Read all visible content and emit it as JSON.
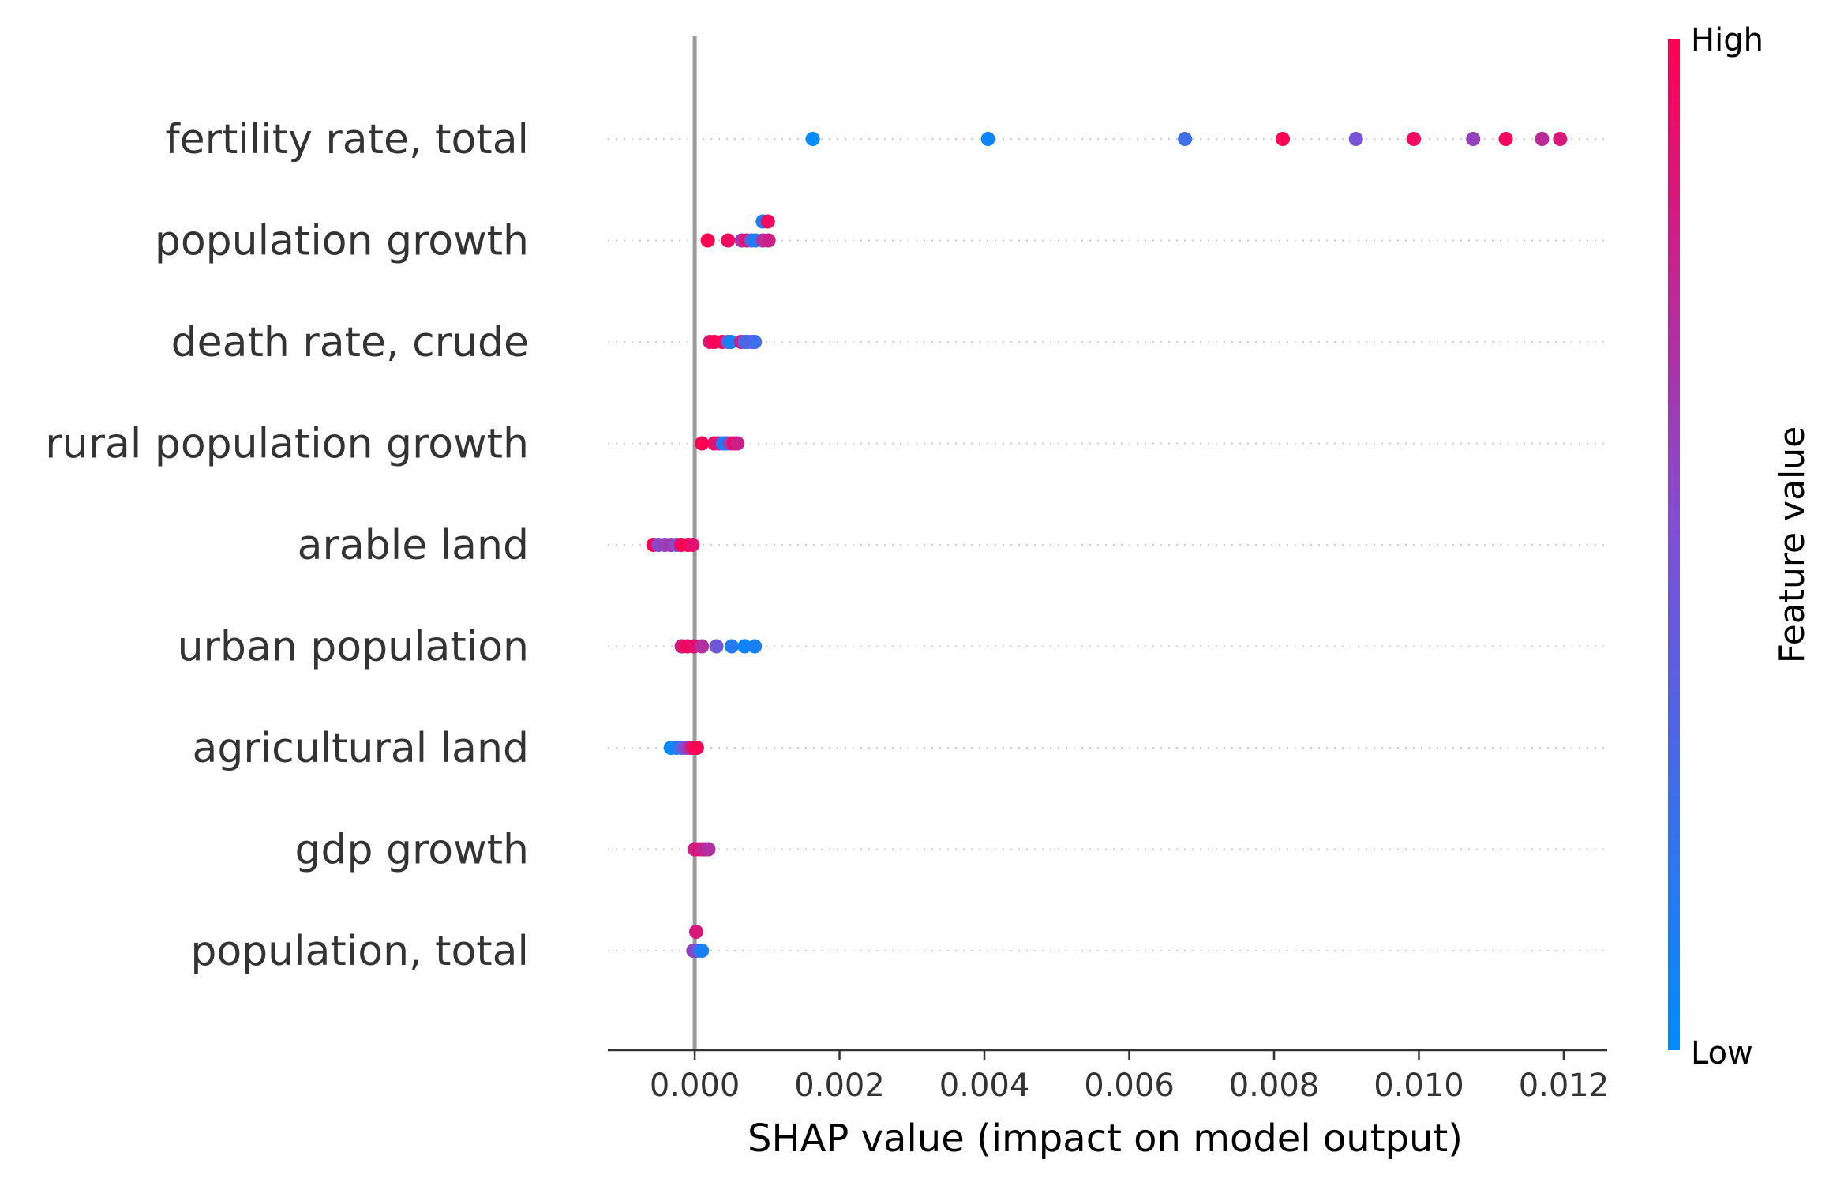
{
  "chart_data": {
    "type": "scatter",
    "subtype": "shap-beeswarm",
    "xlabel": "SHAP value (impact on model output)",
    "xlim": [
      -0.0012,
      0.0126
    ],
    "xticks": [
      0.0,
      0.002,
      0.004,
      0.006,
      0.008,
      0.01,
      0.012
    ],
    "xtick_labels": [
      "0.000",
      "0.002",
      "0.004",
      "0.006",
      "0.008",
      "0.010",
      "0.012"
    ],
    "zero_line": 0.0,
    "colorbar": {
      "title": "Feature value",
      "high_label": "High",
      "low_label": "Low",
      "low_color": "#008bfb",
      "mid_color": "#7b51d8",
      "high_color": "#ff0052"
    },
    "features": [
      {
        "name": "fertility rate, total",
        "points": [
          {
            "x": 0.00163,
            "v": 0.0,
            "dy": 0
          },
          {
            "x": 0.00405,
            "v": 0.05,
            "dy": 0
          },
          {
            "x": 0.00677,
            "v": 0.25,
            "dy": 0
          },
          {
            "x": 0.00812,
            "v": 1.0,
            "dy": 0
          },
          {
            "x": 0.00913,
            "v": 0.5,
            "dy": 0
          },
          {
            "x": 0.00993,
            "v": 0.95,
            "dy": 0
          },
          {
            "x": 0.01075,
            "v": 0.6,
            "dy": 0
          },
          {
            "x": 0.0112,
            "v": 0.95,
            "dy": 0
          },
          {
            "x": 0.0117,
            "v": 0.75,
            "dy": 0
          },
          {
            "x": 0.01195,
            "v": 0.85,
            "dy": 0
          }
        ]
      },
      {
        "name": "population growth",
        "points": [
          {
            "x": 0.00018,
            "v": 1.0,
            "dy": 0
          },
          {
            "x": 0.00046,
            "v": 0.95,
            "dy": 0
          },
          {
            "x": 0.00065,
            "v": 0.7,
            "dy": 0
          },
          {
            "x": 0.00072,
            "v": 0.9,
            "dy": 0
          },
          {
            "x": 0.00078,
            "v": 0.35,
            "dy": 0
          },
          {
            "x": 0.00084,
            "v": 0.1,
            "dy": 0
          },
          {
            "x": 0.00094,
            "v": 0.7,
            "dy": 0
          },
          {
            "x": 0.00102,
            "v": 0.8,
            "dy": 0
          },
          {
            "x": 0.00094,
            "v": 0.1,
            "dy": -1
          },
          {
            "x": 0.00101,
            "v": 0.95,
            "dy": -1
          }
        ]
      },
      {
        "name": "death rate, crude",
        "points": [
          {
            "x": 0.00021,
            "v": 0.85,
            "dy": 0
          },
          {
            "x": 0.00027,
            "v": 1.0,
            "dy": 0
          },
          {
            "x": 0.00038,
            "v": 0.95,
            "dy": 0
          },
          {
            "x": 0.00046,
            "v": 0.4,
            "dy": 0
          },
          {
            "x": 0.0005,
            "v": 0.1,
            "dy": 0
          },
          {
            "x": 0.00064,
            "v": 0.8,
            "dy": 0
          },
          {
            "x": 0.00069,
            "v": 0.5,
            "dy": 0
          },
          {
            "x": 0.00073,
            "v": 0.2,
            "dy": 0
          },
          {
            "x": 0.00079,
            "v": 0.45,
            "dy": 0
          },
          {
            "x": 0.00083,
            "v": 0.25,
            "dy": 0
          }
        ]
      },
      {
        "name": "rural population growth",
        "points": [
          {
            "x": 0.0001,
            "v": 1.0,
            "dy": 0
          },
          {
            "x": 0.00027,
            "v": 0.95,
            "dy": 0
          },
          {
            "x": 0.00033,
            "v": 0.85,
            "dy": 0
          },
          {
            "x": 0.00039,
            "v": 0.2,
            "dy": 0
          },
          {
            "x": 0.00043,
            "v": 0.05,
            "dy": 0
          },
          {
            "x": 0.00048,
            "v": 0.6,
            "dy": 0
          },
          {
            "x": 0.00054,
            "v": 0.95,
            "dy": 0
          },
          {
            "x": 0.00059,
            "v": 0.8,
            "dy": 0
          }
        ]
      },
      {
        "name": "arable land",
        "points": [
          {
            "x": -0.00057,
            "v": 1.0,
            "dy": 0
          },
          {
            "x": -0.0005,
            "v": 0.55,
            "dy": 0
          },
          {
            "x": -0.00041,
            "v": 0.6,
            "dy": 0
          },
          {
            "x": -0.00033,
            "v": 0.65,
            "dy": 0
          },
          {
            "x": -0.00025,
            "v": 0.5,
            "dy": 0
          },
          {
            "x": -0.00019,
            "v": 0.95,
            "dy": 0
          },
          {
            "x": -9e-05,
            "v": 1.0,
            "dy": 0
          },
          {
            "x": -3e-05,
            "v": 0.9,
            "dy": 0
          }
        ]
      },
      {
        "name": "urban population",
        "points": [
          {
            "x": -0.00018,
            "v": 0.85,
            "dy": 0
          },
          {
            "x": -0.0001,
            "v": 0.95,
            "dy": 0
          },
          {
            "x": -1e-05,
            "v": 0.9,
            "dy": 0
          },
          {
            "x": 0.0001,
            "v": 0.7,
            "dy": 0
          },
          {
            "x": 0.0003,
            "v": 0.45,
            "dy": 0
          },
          {
            "x": 0.00051,
            "v": 0.15,
            "dy": 0
          },
          {
            "x": 0.00069,
            "v": 0.05,
            "dy": 0
          },
          {
            "x": 0.00083,
            "v": 0.1,
            "dy": 0
          }
        ]
      },
      {
        "name": "agricultural land",
        "points": [
          {
            "x": -0.00033,
            "v": 0.0,
            "dy": 0
          },
          {
            "x": -0.00025,
            "v": 0.1,
            "dy": 0
          },
          {
            "x": -0.00018,
            "v": 0.35,
            "dy": 0
          },
          {
            "x": -0.00012,
            "v": 0.55,
            "dy": 0
          },
          {
            "x": -7e-05,
            "v": 0.7,
            "dy": 0
          },
          {
            "x": -3e-05,
            "v": 0.85,
            "dy": 0
          },
          {
            "x": 1e-05,
            "v": 0.95,
            "dy": 0
          },
          {
            "x": 3e-05,
            "v": 1.0,
            "dy": 0
          }
        ]
      },
      {
        "name": "gdp growth",
        "points": [
          {
            "x": 0.0,
            "v": 0.8,
            "dy": 0
          },
          {
            "x": 6e-05,
            "v": 0.9,
            "dy": 0
          },
          {
            "x": 0.00011,
            "v": 0.75,
            "dy": 0
          },
          {
            "x": 0.00015,
            "v": 0.8,
            "dy": 0
          },
          {
            "x": 0.00019,
            "v": 0.7,
            "dy": 0
          }
        ]
      },
      {
        "name": "population, total",
        "points": [
          {
            "x": 2e-05,
            "v": 0.85,
            "dy": -1
          },
          {
            "x": -2e-05,
            "v": 0.6,
            "dy": 0
          },
          {
            "x": 4e-05,
            "v": 0.4,
            "dy": 0
          },
          {
            "x": 0.0001,
            "v": 0.1,
            "dy": 0
          }
        ]
      }
    ]
  }
}
